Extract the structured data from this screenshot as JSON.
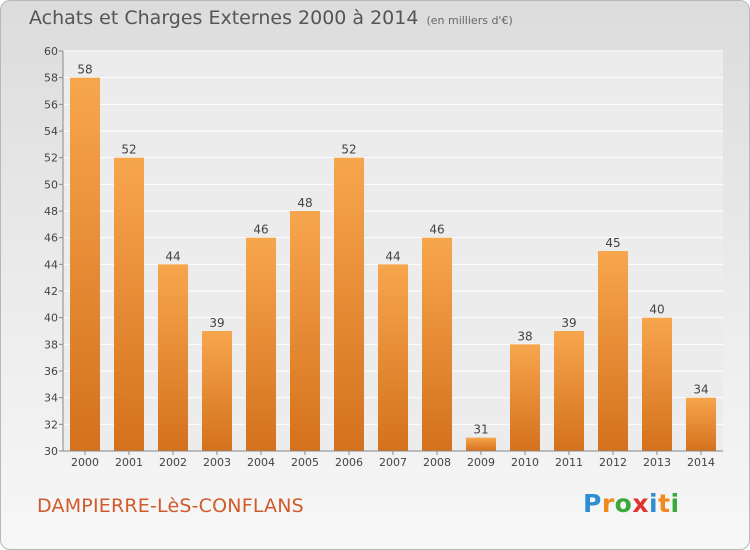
{
  "chart_data": {
    "type": "bar",
    "title": "Achats et Charges Externes 2000 à 2014",
    "subtitle": "(en milliers d'€)",
    "categories": [
      "2000",
      "2001",
      "2002",
      "2003",
      "2004",
      "2005",
      "2006",
      "2007",
      "2008",
      "2009",
      "2010",
      "2011",
      "2012",
      "2013",
      "2014"
    ],
    "values": [
      58,
      52,
      44,
      39,
      46,
      48,
      52,
      44,
      46,
      31,
      38,
      39,
      45,
      40,
      34
    ],
    "ylim": [
      30,
      60
    ],
    "yticks": [
      30,
      32,
      34,
      36,
      38,
      40,
      42,
      44,
      46,
      48,
      50,
      52,
      54,
      56,
      58,
      60
    ],
    "grid": true,
    "bar_color_top": "#f7a64e",
    "bar_color_bottom": "#d4711c"
  },
  "commune": "DAMPIERRE-LèS-CONFLANS",
  "logo": {
    "letters": [
      "P",
      "r",
      "o",
      "x",
      "i",
      "t",
      "i"
    ],
    "colors": [
      "#2e8fd0",
      "#f08a1e",
      "#3aa83a",
      "#e0332e",
      "#2e8fd0",
      "#f08a1e",
      "#3aa83a"
    ]
  }
}
